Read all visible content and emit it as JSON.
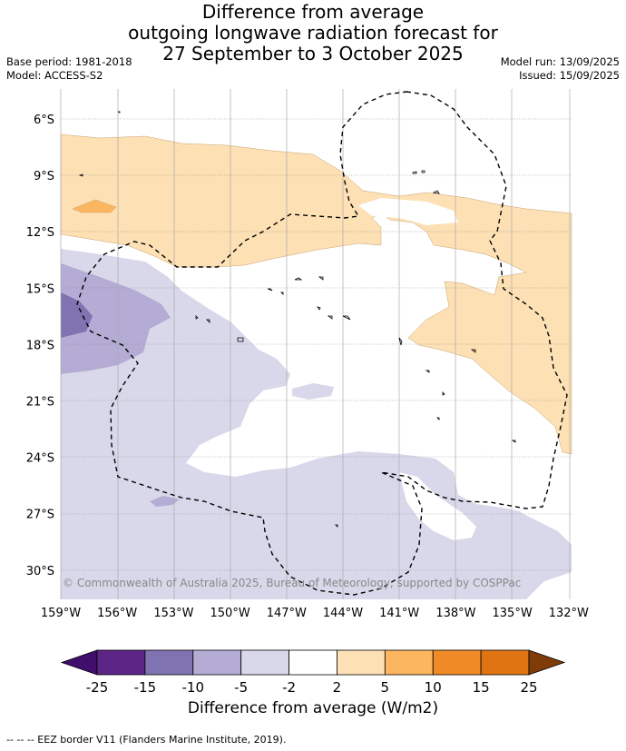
{
  "header": {
    "title_line1": "Difference from average",
    "title_line2": "outgoing longwave radiation forecast for",
    "title_line3": "27 September to 3 October 2025",
    "base_period": "Base period: 1981-2018",
    "model": "Model: ACCESS-S2",
    "model_run": "Model run: 13/09/2025",
    "issued": "Issued: 15/09/2025"
  },
  "map": {
    "lat_labels": [
      "6°S",
      "9°S",
      "12°S",
      "15°S",
      "18°S",
      "21°S",
      "24°S",
      "27°S",
      "30°S"
    ],
    "lon_labels": [
      "159°W",
      "156°W",
      "153°W",
      "150°W",
      "147°W",
      "144°W",
      "141°W",
      "138°W",
      "135°W",
      "132°W"
    ],
    "copyright": "© Commonwealth of Australia 2025, Bureau of Meteorology, supported by COSPPac",
    "colors": {
      "neg25": "#3f0f6b",
      "neg15": "#5c2586",
      "neg10": "#8073b1",
      "neg5": "#b4acd5",
      "neg2": "#d8d8ea",
      "zero": "#ffffff",
      "pos2": "#fde0b4",
      "pos5": "#fdb660",
      "pos10": "#f08a27",
      "pos15": "#e07413",
      "pos25": "#b35607",
      "over": "#7f3b08"
    }
  },
  "colorbar": {
    "ticks": [
      "-25",
      "-15",
      "-10",
      "-5",
      "-2",
      "2",
      "5",
      "10",
      "15",
      "25"
    ],
    "title": "Difference from average (W/m2)"
  },
  "footer": {
    "eez_legend": "--  --  -- EEZ border V11 (Flanders Marine Institute, 2019)."
  }
}
